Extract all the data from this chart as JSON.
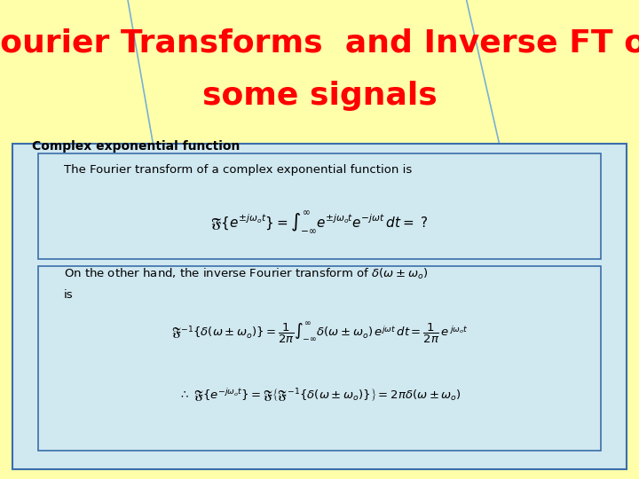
{
  "title_line1": "Fourier Transforms  and Inverse FT of",
  "title_line2": "some signals",
  "title_color": "#ff0000",
  "title_fontsize": 26,
  "bg_color_top": "#ffffaa",
  "bg_color_box": "#d0e8f0",
  "box_edge_color": "#3a6eaa",
  "section_label": "Complex exponential function",
  "box1_text": "The Fourier transform of a complex exponential function is",
  "line_color": "#7ab0d4",
  "figsize": [
    7.2,
    5.4
  ],
  "dpi": 100
}
